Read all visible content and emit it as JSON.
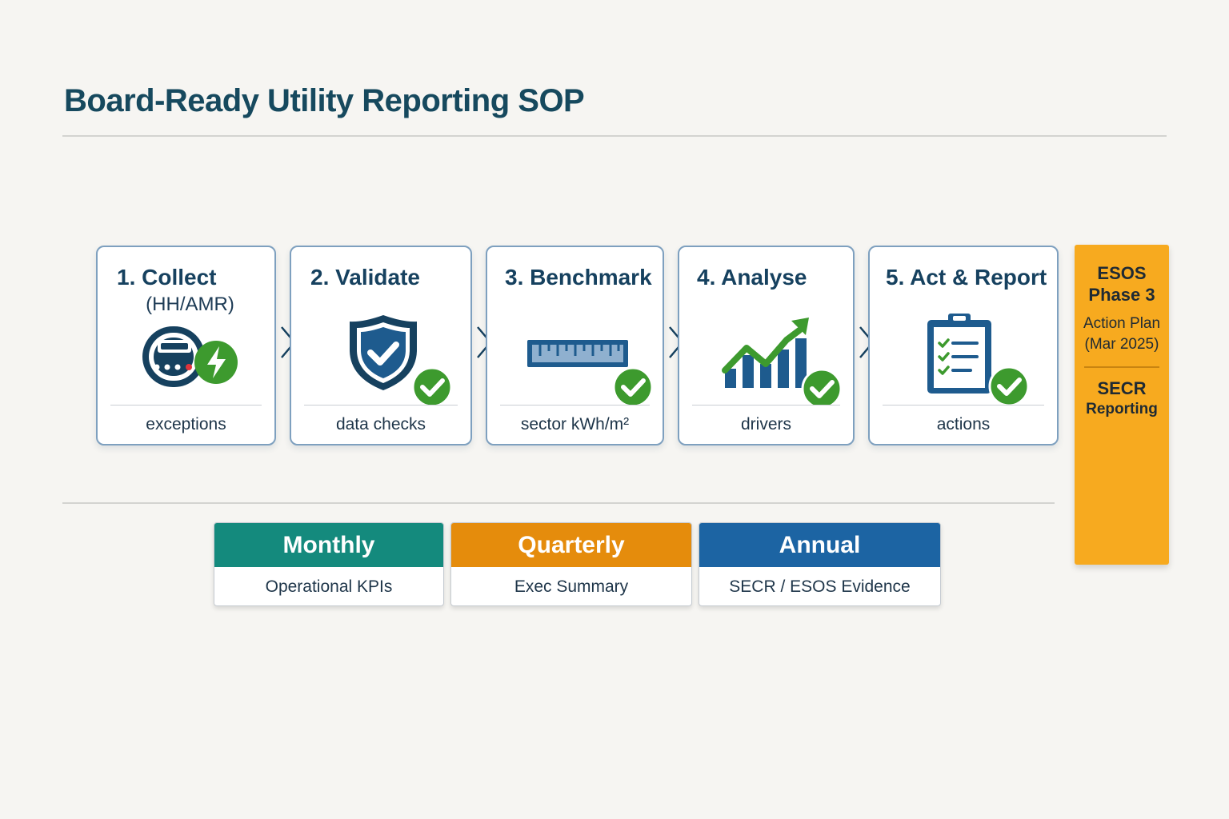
{
  "title": "Board-Ready Utility Reporting SOP",
  "steps": [
    {
      "title": "1. Collect",
      "subtitle": "(HH/AMR)",
      "caption": "exceptions",
      "icon": "smart-meter-icon"
    },
    {
      "title": "2. Validate",
      "subtitle": "",
      "caption": "data checks",
      "icon": "shield-check-icon"
    },
    {
      "title": "3. Benchmark",
      "subtitle": "",
      "caption": "sector kWh/m²",
      "icon": "ruler-icon"
    },
    {
      "title": "4. Analyse",
      "subtitle": "",
      "caption": "drivers",
      "icon": "growth-chart-icon"
    },
    {
      "title": "5. Act & Report",
      "subtitle": "",
      "caption": "actions",
      "icon": "clipboard-checklist-icon"
    }
  ],
  "esos_panel": {
    "heading_line1": "ESOS",
    "heading_line2": "Phase 3",
    "text_line1": "Action Plan",
    "text_line2": "(Mar 2025)",
    "secr_line1": "SECR",
    "secr_line2": "Reporting"
  },
  "cadence": [
    {
      "label": "Monthly",
      "description": "Operational KPIs",
      "color": "#148a7d"
    },
    {
      "label": "Quarterly",
      "description": "Exec Summary",
      "color": "#e58c0c"
    },
    {
      "label": "Annual",
      "description": "SECR / ESOS Evidence",
      "color": "#1c64a3"
    }
  ],
  "colors": {
    "navy": "#16415f",
    "check_green": "#3d9a2e",
    "card_border": "#7ea0bf",
    "esos_orange": "#f7aa1f"
  }
}
